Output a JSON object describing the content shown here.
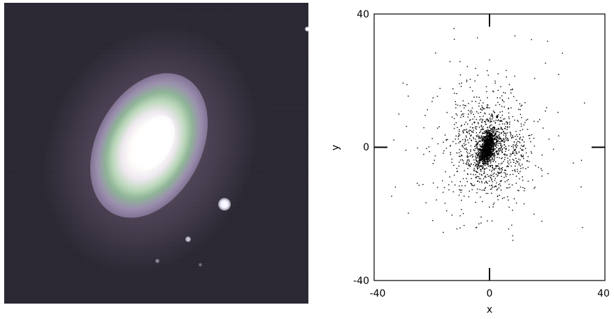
{
  "photo": {
    "subject": "elliptical-galaxy"
  },
  "scatter": {
    "xlabel": "x",
    "ylabel": "y",
    "xlim": [
      -40,
      40
    ],
    "ylim": [
      -40,
      40
    ],
    "x_ticks": [
      "-40",
      "0",
      "40"
    ],
    "y_ticks": [
      "40",
      "0",
      "-40"
    ]
  },
  "colors": {
    "points": "#000000",
    "frame": "#000000"
  }
}
